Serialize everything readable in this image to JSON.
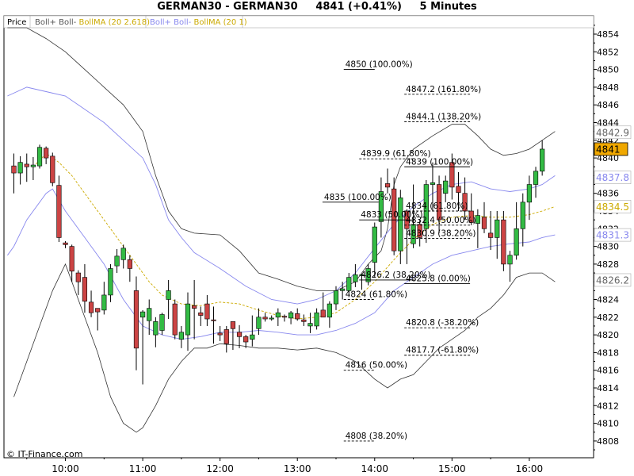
{
  "title": "GERMAN30 - GERMAN30     4841 (+0.41%)     5 Minutes",
  "copyright": "© IT-Finance.com",
  "legend": {
    "price": "Price",
    "boll1_a": "Boll+",
    "boll1_b": "Boll-",
    "boll1_c": "BollMA (20 2.618)",
    "boll2_a": "Boll+",
    "boll2_b": "Boll-",
    "boll2_c": "BollMA (20 1)"
  },
  "colors": {
    "bull": "#33bb44",
    "bear": "#cc4444",
    "outer_band": "#333333",
    "inner_band": "#8888ee",
    "ma": "#ccaa00",
    "last_price_box": "#f0a800"
  },
  "chart_data": {
    "type": "candlestick",
    "ylim": [
      4807,
      4856
    ],
    "y_ticks": [
      4808,
      4810,
      4812,
      4814,
      4816,
      4818,
      4820,
      4822,
      4824,
      4826,
      4828,
      4830,
      4832,
      4834,
      4836,
      4838,
      4840,
      4842,
      4844,
      4846,
      4848,
      4850,
      4852,
      4854
    ],
    "x_ticks": [
      {
        "label": "10:00",
        "i": 8
      },
      {
        "label": "11:00",
        "i": 20
      },
      {
        "label": "12:00",
        "i": 32
      },
      {
        "label": "13:00",
        "i": 44
      },
      {
        "label": "14:00",
        "i": 56
      },
      {
        "label": "15:00",
        "i": 68
      },
      {
        "label": "16:00",
        "i": 80
      }
    ],
    "candles": [
      [
        4839.1,
        4840.5,
        4836.0,
        4838.3
      ],
      [
        4838.3,
        4840.2,
        4837.0,
        4839.5
      ],
      [
        4839.3,
        4840.5,
        4837.3,
        4839.0
      ],
      [
        4839.0,
        4840.1,
        4837.5,
        4839.2
      ],
      [
        4839.1,
        4841.5,
        4838.8,
        4841.2
      ],
      [
        4841.1,
        4841.3,
        4839.3,
        4840.0
      ],
      [
        4840.2,
        4840.6,
        4836.8,
        4837.2
      ],
      [
        4836.9,
        4838.0,
        4830.5,
        4831.0
      ],
      [
        4830.4,
        4830.6,
        4829.8,
        4830.2
      ],
      [
        4830.0,
        4830.2,
        4826.0,
        4827.2
      ],
      [
        4827.0,
        4827.3,
        4824.5,
        4826.0
      ],
      [
        4826.5,
        4828.0,
        4822.5,
        4823.8
      ],
      [
        4823.7,
        4825.0,
        4822.0,
        4822.5
      ],
      [
        4823.0,
        4823.0,
        4820.5,
        4822.6
      ],
      [
        4822.8,
        4826.0,
        4822.3,
        4824.5
      ],
      [
        4824.5,
        4828.0,
        4823.7,
        4827.5
      ],
      [
        4827.8,
        4829.7,
        4827.0,
        4828.9
      ],
      [
        4828.5,
        4830.2,
        4827.5,
        4829.8
      ],
      [
        4828.5,
        4829.0,
        4826.0,
        4827.5
      ],
      [
        4825.0,
        4826.6,
        4816.0,
        4818.5
      ],
      [
        4822.0,
        4822.8,
        4814.4,
        4822.6
      ],
      [
        4821.6,
        4824.0,
        4820.0,
        4823.0
      ],
      [
        4820.0,
        4822.0,
        4818.6,
        4821.5
      ],
      [
        4820.5,
        4822.5,
        4820.0,
        4822.3
      ],
      [
        4824.0,
        4826.2,
        4821.8,
        4825.0
      ],
      [
        4823.5,
        4824.0,
        4819.5,
        4820.0
      ],
      [
        4819.5,
        4821.0,
        4818.5,
        4820.3
      ],
      [
        4820.0,
        4824.8,
        4818.2,
        4823.5
      ],
      [
        4823.3,
        4826.2,
        4819.5,
        4823.0
      ],
      [
        4822.5,
        4823.2,
        4821.0,
        4822.2
      ],
      [
        4823.5,
        4824.5,
        4821.0,
        4821.8
      ],
      [
        4821.7,
        4823.2,
        4819.0,
        4821.6
      ],
      [
        4820.2,
        4821.0,
        4819.3,
        4820.0
      ],
      [
        4820.6,
        4821.0,
        4818.0,
        4819.0
      ],
      [
        4821.5,
        4821.5,
        4818.3,
        4820.7
      ],
      [
        4820.3,
        4821.1,
        4818.5,
        4819.8
      ],
      [
        4819.8,
        4820.0,
        4818.5,
        4819.2
      ],
      [
        4819.5,
        4822.2,
        4818.7,
        4820.0
      ],
      [
        4820.7,
        4823.0,
        4820.0,
        4822.0
      ],
      [
        4822.0,
        4822.5,
        4821.5,
        4821.8
      ],
      [
        4821.8,
        4822.2,
        4821.6,
        4821.9
      ],
      [
        4822.0,
        4823.0,
        4821.0,
        4822.5
      ],
      [
        4822.1,
        4822.3,
        4821.5,
        4822.0
      ],
      [
        4821.9,
        4822.7,
        4821.2,
        4822.5
      ],
      [
        4822.4,
        4823.0,
        4821.6,
        4821.8
      ],
      [
        4821.7,
        4822.3,
        4821.0,
        4821.5
      ],
      [
        4821.0,
        4822.5,
        4820.2,
        4821.3
      ],
      [
        4821.0,
        4823.0,
        4820.6,
        4822.5
      ],
      [
        4822.8,
        4824.8,
        4822.0,
        4822.0
      ],
      [
        4822.0,
        4823.8,
        4820.8,
        4823.5
      ],
      [
        4823.5,
        4825.5,
        4822.8,
        4825.0
      ],
      [
        4825.0,
        4826.0,
        4824.0,
        4825.2
      ],
      [
        4825.0,
        4827.0,
        4824.8,
        4826.5
      ],
      [
        4826.0,
        4828.0,
        4825.4,
        4826.8
      ],
      [
        4826.8,
        4826.9,
        4825.1,
        4826.8
      ],
      [
        4826.0,
        4828.0,
        4825.6,
        4827.5
      ],
      [
        4828.2,
        4832.7,
        4826.5,
        4832.2
      ],
      [
        4832.8,
        4837.8,
        4831.0,
        4836.2
      ],
      [
        4837.1,
        4838.8,
        4836.0,
        4836.7
      ],
      [
        4836.5,
        4837.8,
        4829.0,
        4829.5
      ],
      [
        4829.5,
        4836.4,
        4828.0,
        4835.5
      ],
      [
        4834.0,
        4834.2,
        4828.0,
        4832.0
      ],
      [
        4830.3,
        4837.0,
        4829.8,
        4832.5
      ],
      [
        4832.5,
        4833.0,
        4830.0,
        4831.0
      ],
      [
        4832.0,
        4837.5,
        4830.4,
        4837.0
      ],
      [
        4837.0,
        4839.5,
        4834.0,
        4837.2
      ],
      [
        4837.0,
        4838.0,
        4831.5,
        4833.0
      ],
      [
        4836.0,
        4838.0,
        4835.0,
        4837.4
      ],
      [
        4839.5,
        4840.5,
        4835.3,
        4836.7
      ],
      [
        4836.8,
        4838.4,
        4834.0,
        4836.1
      ],
      [
        4836.0,
        4837.8,
        4833.0,
        4834.0
      ],
      [
        4834.0,
        4836.0,
        4832.4,
        4832.7
      ],
      [
        4832.6,
        4834.2,
        4829.8,
        4833.5
      ],
      [
        4833.3,
        4835.0,
        4831.5,
        4832.0
      ],
      [
        4831.5,
        4834.0,
        4829.6,
        4831.0
      ],
      [
        4831.0,
        4834.0,
        4828.6,
        4833.0
      ],
      [
        4833.0,
        4834.0,
        4827.2,
        4828.0
      ],
      [
        4828.0,
        4829.5,
        4826.0,
        4829.0
      ],
      [
        4829.0,
        4835.0,
        4828.5,
        4832.0
      ],
      [
        4832.0,
        4836.0,
        4830.0,
        4835.0
      ],
      [
        4835.0,
        4838.0,
        4833.0,
        4837.0
      ],
      [
        4837.0,
        4839.0,
        4835.5,
        4838.5
      ],
      [
        4838.5,
        4842.0,
        4838.0,
        4841.0
      ]
    ],
    "bands": {
      "outer_upper": [
        [
          -1,
          4856
        ],
        [
          2,
          4855
        ],
        [
          5,
          4853.5
        ],
        [
          8,
          4852
        ],
        [
          11,
          4850
        ],
        [
          14,
          4848
        ],
        [
          17,
          4846
        ],
        [
          20,
          4843
        ],
        [
          22,
          4838
        ],
        [
          24,
          4834
        ],
        [
          26,
          4832
        ],
        [
          28,
          4831.5
        ],
        [
          32,
          4831.3
        ],
        [
          35,
          4829.5
        ],
        [
          38,
          4827
        ],
        [
          41,
          4826.3
        ],
        [
          44,
          4825.5
        ],
        [
          47,
          4825
        ],
        [
          50,
          4825
        ],
        [
          53,
          4826
        ],
        [
          55,
          4828
        ],
        [
          57,
          4829.5
        ],
        [
          58,
          4832
        ],
        [
          59,
          4837
        ],
        [
          60,
          4839
        ],
        [
          62,
          4841
        ],
        [
          65,
          4842.5
        ],
        [
          68,
          4843.8
        ],
        [
          70,
          4843.8
        ],
        [
          72,
          4842.5
        ],
        [
          74,
          4841
        ],
        [
          76,
          4840.3
        ],
        [
          78,
          4840.5
        ],
        [
          80,
          4841
        ],
        [
          82,
          4842
        ],
        [
          84,
          4843
        ]
      ],
      "outer_lower": [
        [
          0,
          4813
        ],
        [
          2,
          4817
        ],
        [
          4,
          4821
        ],
        [
          6,
          4825
        ],
        [
          8,
          4828
        ],
        [
          9,
          4826
        ],
        [
          11,
          4822
        ],
        [
          13,
          4818
        ],
        [
          15,
          4813
        ],
        [
          17,
          4810
        ],
        [
          19,
          4809
        ],
        [
          20,
          4809.5
        ],
        [
          22,
          4812
        ],
        [
          24,
          4815
        ],
        [
          26,
          4817
        ],
        [
          28,
          4818.5
        ],
        [
          30,
          4818.5
        ],
        [
          32,
          4819
        ],
        [
          35,
          4818.8
        ],
        [
          38,
          4818.5
        ],
        [
          41,
          4818.5
        ],
        [
          44,
          4818.3
        ],
        [
          47,
          4818.5
        ],
        [
          50,
          4818
        ],
        [
          53,
          4817
        ],
        [
          56,
          4815
        ],
        [
          58,
          4814
        ],
        [
          60,
          4815
        ],
        [
          62,
          4815.5
        ],
        [
          64,
          4817
        ],
        [
          66,
          4818.5
        ],
        [
          68,
          4819.5
        ],
        [
          70,
          4820.5
        ],
        [
          72,
          4822
        ],
        [
          74,
          4823
        ],
        [
          76,
          4824.5
        ],
        [
          78,
          4826.5
        ],
        [
          80,
          4827
        ],
        [
          82,
          4827
        ],
        [
          84,
          4826
        ]
      ],
      "inner_upper": [
        [
          -1,
          4847
        ],
        [
          2,
          4848
        ],
        [
          5,
          4847.5
        ],
        [
          8,
          4847
        ],
        [
          11,
          4845.5
        ],
        [
          14,
          4844
        ],
        [
          17,
          4842
        ],
        [
          20,
          4840
        ],
        [
          22,
          4837
        ],
        [
          24,
          4833
        ],
        [
          26,
          4831
        ],
        [
          28,
          4829.3
        ],
        [
          32,
          4827.5
        ],
        [
          36,
          4825.5
        ],
        [
          40,
          4824
        ],
        [
          44,
          4823.5
        ],
        [
          47,
          4824
        ],
        [
          50,
          4825
        ],
        [
          53,
          4827
        ],
        [
          56,
          4829.8
        ],
        [
          59,
          4832.5
        ],
        [
          62,
          4834.5
        ],
        [
          65,
          4836
        ],
        [
          68,
          4837
        ],
        [
          71,
          4837.3
        ],
        [
          74,
          4836.5
        ],
        [
          77,
          4836.2
        ],
        [
          80,
          4836.5
        ],
        [
          82,
          4837
        ],
        [
          84,
          4838
        ]
      ],
      "inner_lower": [
        [
          -1,
          4829
        ],
        [
          0,
          4830
        ],
        [
          2,
          4833
        ],
        [
          5,
          4836
        ],
        [
          6,
          4836.5
        ],
        [
          8,
          4834
        ],
        [
          11,
          4831
        ],
        [
          14,
          4828
        ],
        [
          17,
          4824
        ],
        [
          20,
          4821
        ],
        [
          23,
          4820
        ],
        [
          26,
          4819.5
        ],
        [
          29,
          4819.8
        ],
        [
          32,
          4820.3
        ],
        [
          35,
          4820.3
        ],
        [
          38,
          4820.5
        ],
        [
          41,
          4820.3
        ],
        [
          44,
          4820
        ],
        [
          47,
          4820
        ],
        [
          50,
          4820.5
        ],
        [
          53,
          4821.3
        ],
        [
          56,
          4822.5
        ],
        [
          59,
          4825
        ],
        [
          62,
          4826.5
        ],
        [
          65,
          4828
        ],
        [
          68,
          4829
        ],
        [
          71,
          4829.5
        ],
        [
          74,
          4830
        ],
        [
          77,
          4830.3
        ],
        [
          80,
          4830.5
        ],
        [
          82,
          4831
        ],
        [
          84,
          4831.3
        ]
      ],
      "ma": [
        [
          3,
          4839
        ],
        [
          5,
          4840.5
        ],
        [
          7,
          4839.5
        ],
        [
          9,
          4838
        ],
        [
          11,
          4836
        ],
        [
          13,
          4834
        ],
        [
          15,
          4832
        ],
        [
          17,
          4830
        ],
        [
          19,
          4828
        ],
        [
          21,
          4826
        ],
        [
          23,
          4824.5
        ],
        [
          26,
          4823.5
        ],
        [
          29,
          4823.3
        ],
        [
          32,
          4823.7
        ],
        [
          35,
          4823.5
        ],
        [
          38,
          4822.8
        ],
        [
          41,
          4822.2
        ],
        [
          44,
          4821.8
        ],
        [
          47,
          4822
        ],
        [
          50,
          4822.5
        ],
        [
          53,
          4824
        ],
        [
          56,
          4826
        ],
        [
          59,
          4828.5
        ],
        [
          62,
          4830.8
        ],
        [
          65,
          4832.5
        ],
        [
          68,
          4833.3
        ],
        [
          71,
          4833.5
        ],
        [
          74,
          4833.3
        ],
        [
          77,
          4833.3
        ],
        [
          80,
          4833.6
        ],
        [
          82,
          4834
        ],
        [
          84,
          4834.5
        ]
      ]
    },
    "right_labels": [
      {
        "value": 4842.9,
        "text": "4842.9",
        "color": "#666666",
        "box": false
      },
      {
        "value": 4841,
        "text": "4841",
        "color": "#000000",
        "box": true
      },
      {
        "value": 4837.8,
        "text": "4837.8",
        "color": "#8888ee",
        "box": false
      },
      {
        "value": 4834.5,
        "text": "4834.5",
        "color": "#ccaa00",
        "box": false
      },
      {
        "value": 4831.3,
        "text": "4831.3",
        "color": "#8888ee",
        "box": false
      },
      {
        "value": 4826.2,
        "text": "4826.2",
        "color": "#666666",
        "box": false
      }
    ],
    "fib_levels": [
      {
        "text": "4850 (100.00%)",
        "value": 4850,
        "i1": 51.2,
        "i2": 56,
        "style": "solid"
      },
      {
        "text": "4847.2 (161.80%)",
        "value": 4847.2,
        "i1": 60.6,
        "i2": 70.8,
        "style": "dash"
      },
      {
        "text": "4844.1 (138.20%)",
        "value": 4844.1,
        "i1": 60.6,
        "i2": 70.8,
        "style": "dash"
      },
      {
        "text": "4839.9 (61.80%)",
        "value": 4839.9,
        "i1": 53.6,
        "i2": 62.2,
        "style": "dash"
      },
      {
        "text": "4839 (100.00%)",
        "value": 4839,
        "i1": 60.6,
        "i2": 70.8,
        "style": "solid"
      },
      {
        "text": "4835 (100.00%)",
        "value": 4835,
        "i1": 47.9,
        "i2": 56.6,
        "style": "solid"
      },
      {
        "text": "4834 (61.80%)",
        "value": 4834,
        "i1": 60.6,
        "i2": 70.8,
        "style": "dash"
      },
      {
        "text": "4833 (50.00%)",
        "value": 4833,
        "i1": 53.6,
        "i2": 62.2,
        "style": "solid"
      },
      {
        "text": "4832.4 (50.00%)",
        "value": 4832.4,
        "i1": 60.6,
        "i2": 70.8,
        "style": "dash"
      },
      {
        "text": "4830.9 (38.20%)",
        "value": 4830.9,
        "i1": 60.6,
        "i2": 70.8,
        "style": "dash"
      },
      {
        "text": "4826.2 (38.20%)",
        "value": 4826.2,
        "i1": 53.6,
        "i2": 62.2,
        "style": "solid"
      },
      {
        "text": "4825.8 (0.00%)",
        "value": 4825.8,
        "i1": 60.6,
        "i2": 70.8,
        "style": "solid"
      },
      {
        "text": "4824 (61.80%)",
        "value": 4824,
        "i1": 51.2,
        "i2": 56,
        "style": "dash"
      },
      {
        "text": "4820.8 (-38.20%)",
        "value": 4820.8,
        "i1": 60.6,
        "i2": 70.8,
        "style": "dash"
      },
      {
        "text": "4817.7 (-61.80%)",
        "value": 4817.7,
        "i1": 60.6,
        "i2": 70.8,
        "style": "dash"
      },
      {
        "text": "4816 (50.00%)",
        "value": 4816,
        "i1": 51.2,
        "i2": 56,
        "style": "dash"
      },
      {
        "text": "4808 (38.20%)",
        "value": 4808,
        "i1": 51.2,
        "i2": 56,
        "style": "dash"
      }
    ]
  }
}
